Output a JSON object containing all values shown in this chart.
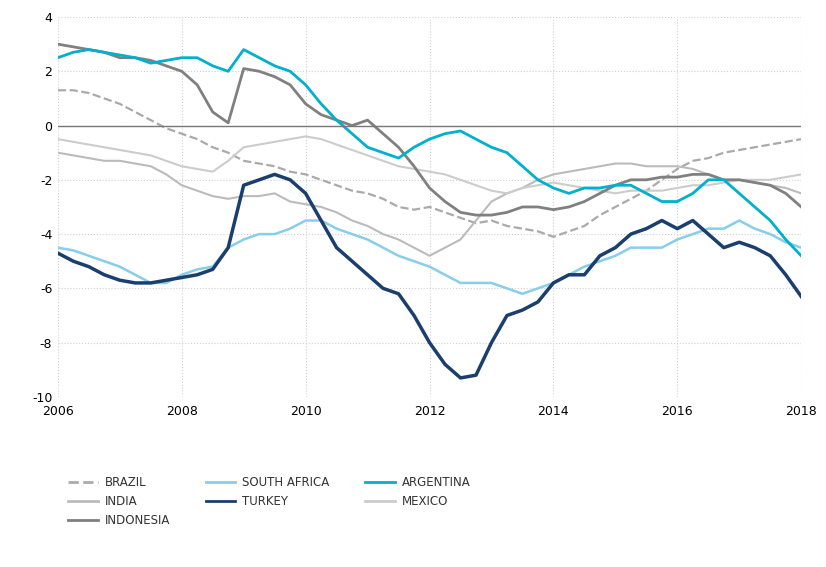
{
  "title": "",
  "x_start": 2006,
  "x_end": 2018,
  "ylim": [
    -10,
    4
  ],
  "yticks": [
    -10,
    -8,
    -6,
    -4,
    -2,
    0,
    2,
    4
  ],
  "xticks": [
    2006,
    2008,
    2010,
    2012,
    2014,
    2016,
    2018
  ],
  "series": {
    "BRAZIL": {
      "color": "#aaaaaa",
      "linestyle": "dashed",
      "linewidth": 1.6,
      "data_x": [
        2006.0,
        2006.25,
        2006.5,
        2006.75,
        2007.0,
        2007.25,
        2007.5,
        2007.75,
        2008.0,
        2008.25,
        2008.5,
        2008.75,
        2009.0,
        2009.25,
        2009.5,
        2009.75,
        2010.0,
        2010.25,
        2010.5,
        2010.75,
        2011.0,
        2011.25,
        2011.5,
        2011.75,
        2012.0,
        2012.25,
        2012.5,
        2012.75,
        2013.0,
        2013.25,
        2013.5,
        2013.75,
        2014.0,
        2014.25,
        2014.5,
        2014.75,
        2015.0,
        2015.25,
        2015.5,
        2015.75,
        2016.0,
        2016.25,
        2016.5,
        2016.75,
        2017.0,
        2017.25,
        2017.5,
        2017.75,
        2018.0
      ],
      "data_y": [
        1.3,
        1.3,
        1.2,
        1.0,
        0.8,
        0.5,
        0.2,
        -0.1,
        -0.3,
        -0.5,
        -0.8,
        -1.0,
        -1.3,
        -1.4,
        -1.5,
        -1.7,
        -1.8,
        -2.0,
        -2.2,
        -2.4,
        -2.5,
        -2.7,
        -3.0,
        -3.1,
        -3.0,
        -3.2,
        -3.4,
        -3.6,
        -3.5,
        -3.7,
        -3.8,
        -3.9,
        -4.1,
        -3.9,
        -3.7,
        -3.3,
        -3.0,
        -2.7,
        -2.4,
        -2.0,
        -1.6,
        -1.3,
        -1.2,
        -1.0,
        -0.9,
        -0.8,
        -0.7,
        -0.6,
        -0.5
      ]
    },
    "INDIA": {
      "color": "#bbbbbb",
      "linestyle": "solid",
      "linewidth": 1.5,
      "data_x": [
        2006.0,
        2006.25,
        2006.5,
        2006.75,
        2007.0,
        2007.25,
        2007.5,
        2007.75,
        2008.0,
        2008.25,
        2008.5,
        2008.75,
        2009.0,
        2009.25,
        2009.5,
        2009.75,
        2010.0,
        2010.25,
        2010.5,
        2010.75,
        2011.0,
        2011.25,
        2011.5,
        2011.75,
        2012.0,
        2012.25,
        2012.5,
        2012.75,
        2013.0,
        2013.25,
        2013.5,
        2013.75,
        2014.0,
        2014.25,
        2014.5,
        2014.75,
        2015.0,
        2015.25,
        2015.5,
        2015.75,
        2016.0,
        2016.25,
        2016.5,
        2016.75,
        2017.0,
        2017.25,
        2017.5,
        2017.75,
        2018.0
      ],
      "data_y": [
        -1.0,
        -1.1,
        -1.2,
        -1.3,
        -1.3,
        -1.4,
        -1.5,
        -1.8,
        -2.2,
        -2.4,
        -2.6,
        -2.7,
        -2.6,
        -2.6,
        -2.5,
        -2.8,
        -2.9,
        -3.0,
        -3.2,
        -3.5,
        -3.7,
        -4.0,
        -4.2,
        -4.5,
        -4.8,
        -4.5,
        -4.2,
        -3.5,
        -2.8,
        -2.5,
        -2.3,
        -2.0,
        -1.8,
        -1.7,
        -1.6,
        -1.5,
        -1.4,
        -1.4,
        -1.5,
        -1.5,
        -1.5,
        -1.6,
        -1.8,
        -2.0,
        -2.0,
        -2.1,
        -2.2,
        -2.3,
        -2.5
      ]
    },
    "INDONESIA": {
      "color": "#808080",
      "linestyle": "solid",
      "linewidth": 2.0,
      "data_x": [
        2006.0,
        2006.25,
        2006.5,
        2006.75,
        2007.0,
        2007.25,
        2007.5,
        2007.75,
        2008.0,
        2008.25,
        2008.5,
        2008.75,
        2009.0,
        2009.25,
        2009.5,
        2009.75,
        2010.0,
        2010.25,
        2010.5,
        2010.75,
        2011.0,
        2011.25,
        2011.5,
        2011.75,
        2012.0,
        2012.25,
        2012.5,
        2012.75,
        2013.0,
        2013.25,
        2013.5,
        2013.75,
        2014.0,
        2014.25,
        2014.5,
        2014.75,
        2015.0,
        2015.25,
        2015.5,
        2015.75,
        2016.0,
        2016.25,
        2016.5,
        2016.75,
        2017.0,
        2017.25,
        2017.5,
        2017.75,
        2018.0
      ],
      "data_y": [
        3.0,
        2.9,
        2.8,
        2.7,
        2.5,
        2.5,
        2.4,
        2.2,
        2.0,
        1.5,
        0.5,
        0.1,
        2.1,
        2.0,
        1.8,
        1.5,
        0.8,
        0.4,
        0.2,
        0.0,
        0.2,
        -0.3,
        -0.8,
        -1.5,
        -2.3,
        -2.8,
        -3.2,
        -3.3,
        -3.3,
        -3.2,
        -3.0,
        -3.0,
        -3.1,
        -3.0,
        -2.8,
        -2.5,
        -2.2,
        -2.0,
        -2.0,
        -1.9,
        -1.9,
        -1.8,
        -1.8,
        -2.0,
        -2.0,
        -2.1,
        -2.2,
        -2.5,
        -3.0
      ]
    },
    "SOUTH_AFRICA": {
      "color": "#87ceeb",
      "linestyle": "solid",
      "linewidth": 1.8,
      "data_x": [
        2006.0,
        2006.25,
        2006.5,
        2006.75,
        2007.0,
        2007.25,
        2007.5,
        2007.75,
        2008.0,
        2008.25,
        2008.5,
        2008.75,
        2009.0,
        2009.25,
        2009.5,
        2009.75,
        2010.0,
        2010.25,
        2010.5,
        2010.75,
        2011.0,
        2011.25,
        2011.5,
        2011.75,
        2012.0,
        2012.25,
        2012.5,
        2012.75,
        2013.0,
        2013.25,
        2013.5,
        2013.75,
        2014.0,
        2014.25,
        2014.5,
        2014.75,
        2015.0,
        2015.25,
        2015.5,
        2015.75,
        2016.0,
        2016.25,
        2016.5,
        2016.75,
        2017.0,
        2017.25,
        2017.5,
        2017.75,
        2018.0
      ],
      "data_y": [
        -4.5,
        -4.6,
        -4.8,
        -5.0,
        -5.2,
        -5.5,
        -5.8,
        -5.8,
        -5.5,
        -5.3,
        -5.2,
        -4.5,
        -4.2,
        -4.0,
        -4.0,
        -3.8,
        -3.5,
        -3.5,
        -3.8,
        -4.0,
        -4.2,
        -4.5,
        -4.8,
        -5.0,
        -5.2,
        -5.5,
        -5.8,
        -5.8,
        -5.8,
        -6.0,
        -6.2,
        -6.0,
        -5.8,
        -5.5,
        -5.2,
        -5.0,
        -4.8,
        -4.5,
        -4.5,
        -4.5,
        -4.2,
        -4.0,
        -3.8,
        -3.8,
        -3.5,
        -3.8,
        -4.0,
        -4.3,
        -4.5
      ]
    },
    "TURKEY": {
      "color": "#1a3f6f",
      "linestyle": "solid",
      "linewidth": 2.5,
      "data_x": [
        2006.0,
        2006.25,
        2006.5,
        2006.75,
        2007.0,
        2007.25,
        2007.5,
        2007.75,
        2008.0,
        2008.25,
        2008.5,
        2008.75,
        2009.0,
        2009.25,
        2009.5,
        2009.75,
        2010.0,
        2010.25,
        2010.5,
        2010.75,
        2011.0,
        2011.25,
        2011.5,
        2011.75,
        2012.0,
        2012.25,
        2012.5,
        2012.75,
        2013.0,
        2013.25,
        2013.5,
        2013.75,
        2014.0,
        2014.25,
        2014.5,
        2014.75,
        2015.0,
        2015.25,
        2015.5,
        2015.75,
        2016.0,
        2016.25,
        2016.5,
        2016.75,
        2017.0,
        2017.25,
        2017.5,
        2017.75,
        2018.0
      ],
      "data_y": [
        -4.7,
        -5.0,
        -5.2,
        -5.5,
        -5.7,
        -5.8,
        -5.8,
        -5.7,
        -5.6,
        -5.5,
        -5.3,
        -4.5,
        -2.2,
        -2.0,
        -1.8,
        -2.0,
        -2.5,
        -3.5,
        -4.5,
        -5.0,
        -5.5,
        -6.0,
        -6.2,
        -7.0,
        -8.0,
        -8.8,
        -9.3,
        -9.2,
        -8.0,
        -7.0,
        -6.8,
        -6.5,
        -5.8,
        -5.5,
        -5.5,
        -4.8,
        -4.5,
        -4.0,
        -3.8,
        -3.5,
        -3.8,
        -3.5,
        -4.0,
        -4.5,
        -4.3,
        -4.5,
        -4.8,
        -5.5,
        -6.3
      ]
    },
    "ARGENTINA": {
      "color": "#00b0cc",
      "linestyle": "solid",
      "linewidth": 2.0,
      "data_x": [
        2006.0,
        2006.25,
        2006.5,
        2006.75,
        2007.0,
        2007.25,
        2007.5,
        2007.75,
        2008.0,
        2008.25,
        2008.5,
        2008.75,
        2009.0,
        2009.25,
        2009.5,
        2009.75,
        2010.0,
        2010.25,
        2010.5,
        2010.75,
        2011.0,
        2011.25,
        2011.5,
        2011.75,
        2012.0,
        2012.25,
        2012.5,
        2012.75,
        2013.0,
        2013.25,
        2013.5,
        2013.75,
        2014.0,
        2014.25,
        2014.5,
        2014.75,
        2015.0,
        2015.25,
        2015.5,
        2015.75,
        2016.0,
        2016.25,
        2016.5,
        2016.75,
        2017.0,
        2017.25,
        2017.5,
        2017.75,
        2018.0
      ],
      "data_y": [
        2.5,
        2.7,
        2.8,
        2.7,
        2.6,
        2.5,
        2.3,
        2.4,
        2.5,
        2.5,
        2.2,
        2.0,
        2.8,
        2.5,
        2.2,
        2.0,
        1.5,
        0.8,
        0.2,
        -0.3,
        -0.8,
        -1.0,
        -1.2,
        -0.8,
        -0.5,
        -0.3,
        -0.2,
        -0.5,
        -0.8,
        -1.0,
        -1.5,
        -2.0,
        -2.3,
        -2.5,
        -2.3,
        -2.3,
        -2.2,
        -2.2,
        -2.5,
        -2.8,
        -2.8,
        -2.5,
        -2.0,
        -2.0,
        -2.5,
        -3.0,
        -3.5,
        -4.2,
        -4.8
      ]
    },
    "MEXICO": {
      "color": "#cccccc",
      "linestyle": "solid",
      "linewidth": 1.5,
      "data_x": [
        2006.0,
        2006.25,
        2006.5,
        2006.75,
        2007.0,
        2007.25,
        2007.5,
        2007.75,
        2008.0,
        2008.25,
        2008.5,
        2008.75,
        2009.0,
        2009.25,
        2009.5,
        2009.75,
        2010.0,
        2010.25,
        2010.5,
        2010.75,
        2011.0,
        2011.25,
        2011.5,
        2011.75,
        2012.0,
        2012.25,
        2012.5,
        2012.75,
        2013.0,
        2013.25,
        2013.5,
        2013.75,
        2014.0,
        2014.25,
        2014.5,
        2014.75,
        2015.0,
        2015.25,
        2015.5,
        2015.75,
        2016.0,
        2016.25,
        2016.5,
        2016.75,
        2017.0,
        2017.25,
        2017.5,
        2017.75,
        2018.0
      ],
      "data_y": [
        -0.5,
        -0.6,
        -0.7,
        -0.8,
        -0.9,
        -1.0,
        -1.1,
        -1.3,
        -1.5,
        -1.6,
        -1.7,
        -1.3,
        -0.8,
        -0.7,
        -0.6,
        -0.5,
        -0.4,
        -0.5,
        -0.7,
        -0.9,
        -1.1,
        -1.3,
        -1.5,
        -1.6,
        -1.7,
        -1.8,
        -2.0,
        -2.2,
        -2.4,
        -2.5,
        -2.3,
        -2.2,
        -2.1,
        -2.2,
        -2.3,
        -2.4,
        -2.5,
        -2.4,
        -2.4,
        -2.4,
        -2.3,
        -2.2,
        -2.2,
        -2.1,
        -2.0,
        -2.0,
        -2.0,
        -1.9,
        -1.8
      ]
    }
  },
  "legend": [
    {
      "label": "BRAZIL",
      "color": "#aaaaaa",
      "linestyle": "dashed",
      "col": 0,
      "row": 0
    },
    {
      "label": "INDIA",
      "color": "#bbbbbb",
      "linestyle": "solid",
      "col": 1,
      "row": 0
    },
    {
      "label": "INDONESIA",
      "color": "#808080",
      "linestyle": "solid",
      "col": 2,
      "row": 0
    },
    {
      "label": "SOUTH AFRICA",
      "color": "#87ceeb",
      "linestyle": "solid",
      "col": 0,
      "row": 1
    },
    {
      "label": "TURKEY",
      "color": "#1a3f6f",
      "linestyle": "solid",
      "col": 1,
      "row": 1
    },
    {
      "label": "ARGENTINA",
      "color": "#00b0cc",
      "linestyle": "solid",
      "col": 2,
      "row": 1
    },
    {
      "label": "MEXICO",
      "color": "#cccccc",
      "linestyle": "solid",
      "col": 0,
      "row": 2
    }
  ],
  "grid_color": "#d0d0d0",
  "bg_color": "#ffffff",
  "zero_line_color": "#777777"
}
